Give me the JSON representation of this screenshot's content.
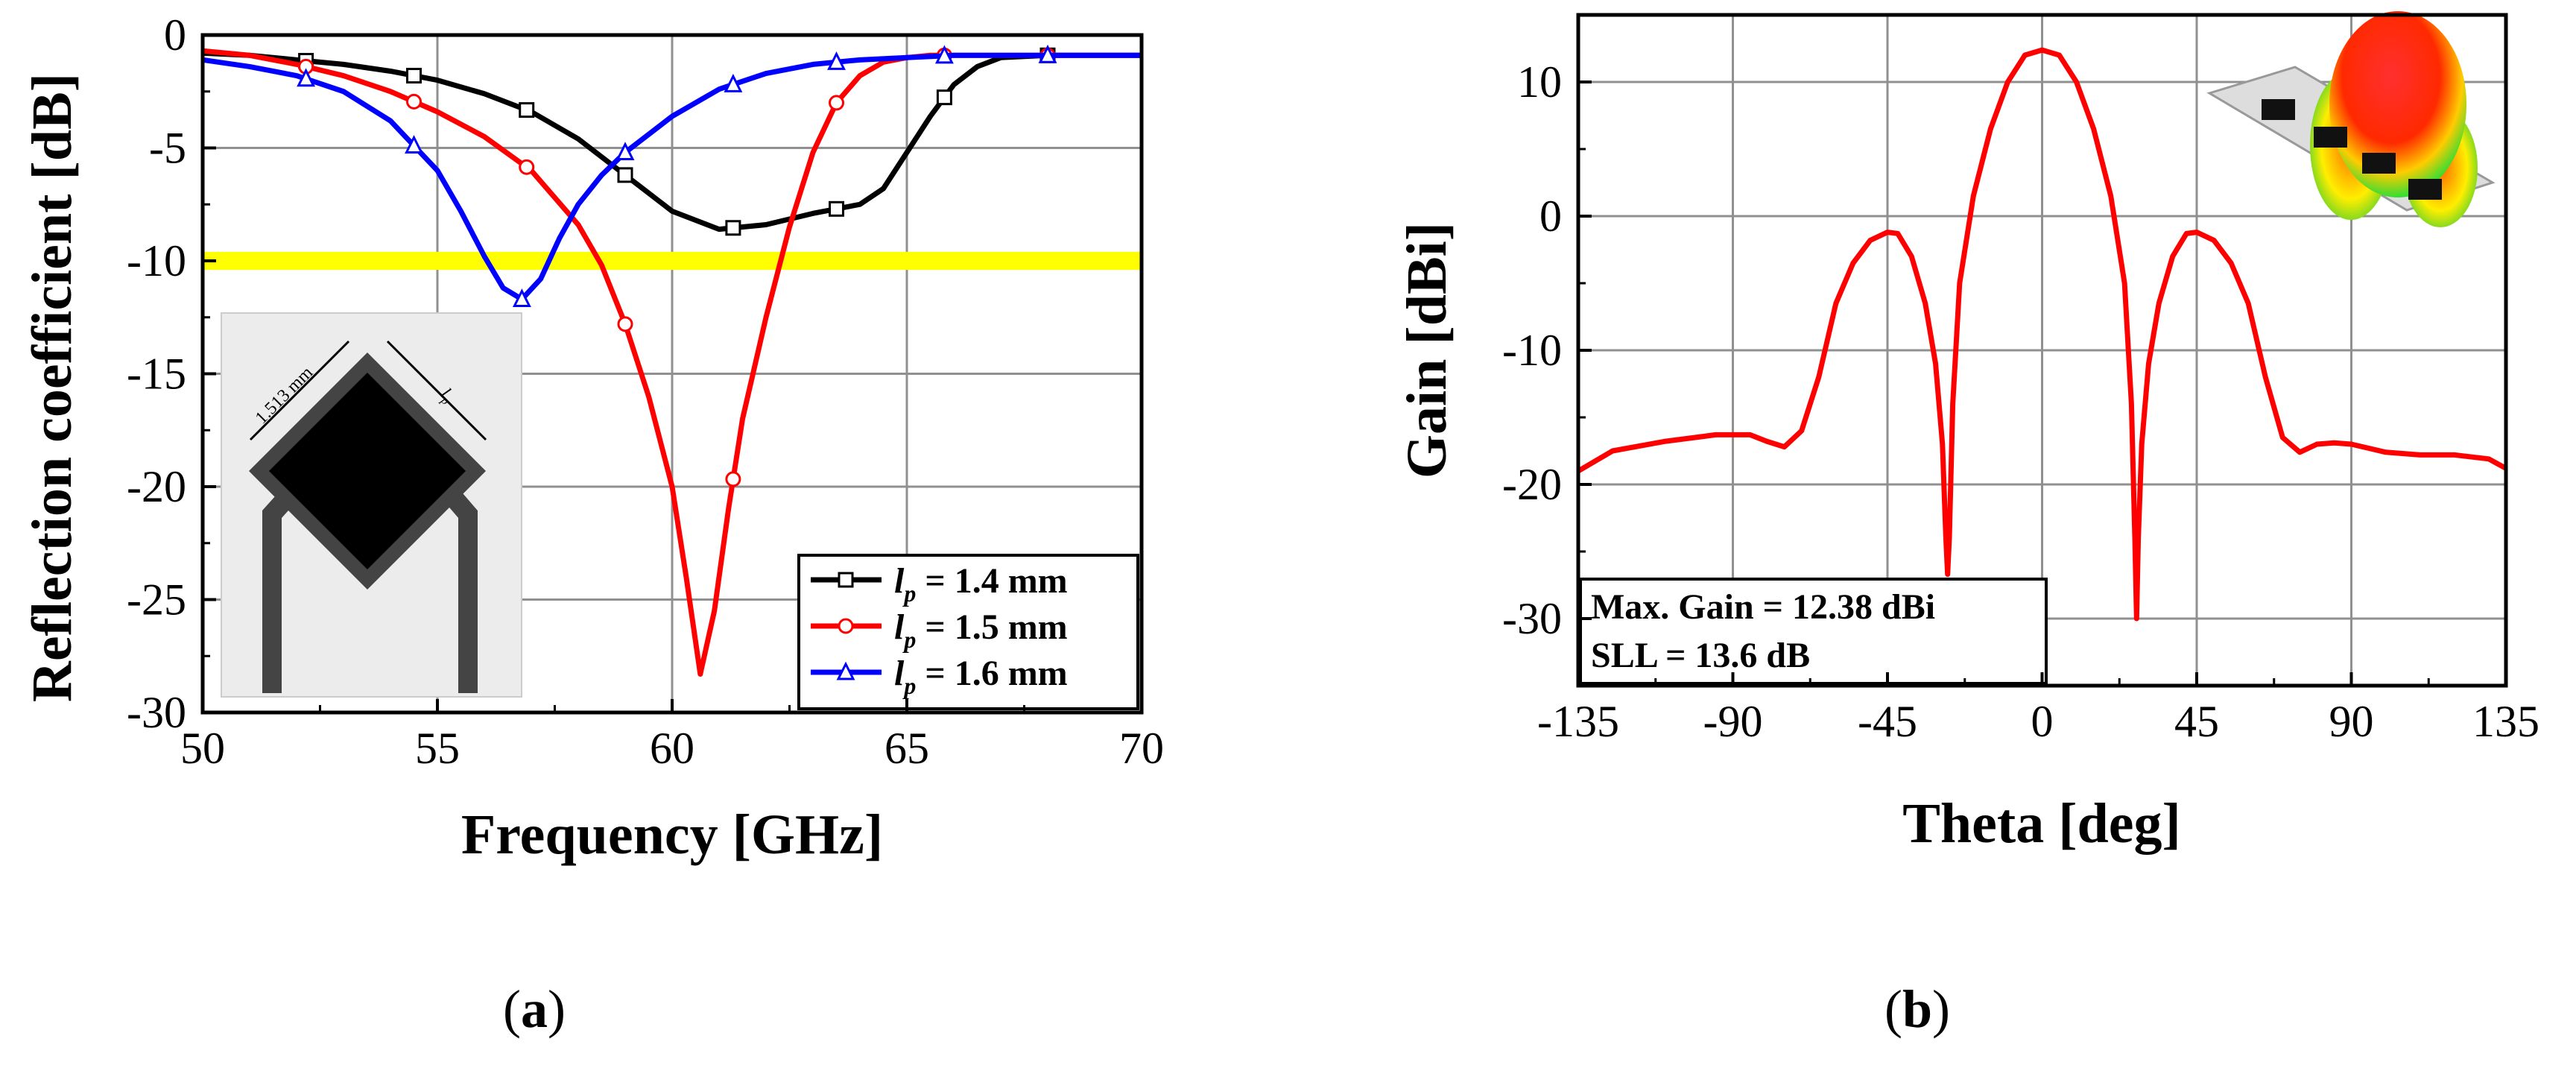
{
  "chart_data": [
    {
      "type": "line",
      "caption": "(a)",
      "xlabel": "Frequency [GHz]",
      "ylabel": "Reflection coefficient [dB]",
      "xlim": [
        50,
        70
      ],
      "ylim": [
        -30,
        0
      ],
      "xticks": [
        50,
        55,
        60,
        65,
        70
      ],
      "yticks": [
        0,
        -5,
        -10,
        -15,
        -20,
        -25,
        -30
      ],
      "grid": true,
      "threshold_band": [
        -10.4,
        -9.6
      ],
      "legend_position": "bottom-right",
      "series": [
        {
          "name_var": "l",
          "name_sub": "p",
          "name_rest": " = 1.4 mm",
          "color": "#000000",
          "marker": "square",
          "x": [
            50,
            51,
            52,
            53,
            54,
            55,
            56,
            57,
            58,
            59,
            60,
            61,
            62,
            63,
            63.5,
            64,
            64.5,
            65,
            65.5,
            66,
            66.5,
            67,
            68,
            69,
            70
          ],
          "y": [
            -0.8,
            -0.9,
            -1.1,
            -1.3,
            -1.6,
            -2.0,
            -2.6,
            -3.4,
            -4.6,
            -6.2,
            -7.8,
            -8.6,
            -8.4,
            -7.9,
            -7.7,
            -7.5,
            -6.8,
            -5.2,
            -3.6,
            -2.2,
            -1.4,
            -1.0,
            -0.9,
            -0.9,
            -0.9
          ],
          "marker_x": [
            52.2,
            54.5,
            56.9,
            59.0,
            61.3,
            63.5,
            65.8,
            68.0
          ]
        },
        {
          "name_var": "l",
          "name_sub": "p",
          "name_rest": " = 1.5 mm",
          "color": "#ff0000",
          "marker": "circle",
          "x": [
            50,
            51,
            52,
            53,
            54,
            55,
            56,
            57,
            58,
            58.5,
            59,
            59.5,
            60,
            60.3,
            60.6,
            60.9,
            61.2,
            61.5,
            62,
            62.5,
            63,
            63.5,
            64,
            64.5,
            65,
            65.5,
            66,
            67,
            68,
            69,
            70
          ],
          "y": [
            -0.7,
            -0.9,
            -1.3,
            -1.8,
            -2.5,
            -3.4,
            -4.5,
            -6.0,
            -8.4,
            -10.2,
            -12.8,
            -16.0,
            -20.0,
            -24.0,
            -28.3,
            -25.5,
            -21.0,
            -17.0,
            -12.5,
            -8.5,
            -5.2,
            -3.0,
            -1.8,
            -1.2,
            -1.0,
            -0.9,
            -0.9,
            -0.9,
            -0.9,
            -0.9,
            -0.9
          ],
          "marker_x": [
            52.2,
            54.5,
            56.9,
            59.0,
            61.3,
            63.5,
            65.8,
            68.0
          ]
        },
        {
          "name_var": "l",
          "name_sub": "p",
          "name_rest": " = 1.6 mm",
          "color": "#0000ff",
          "marker": "triangle",
          "x": [
            50,
            51,
            52,
            53,
            54,
            55,
            55.5,
            56,
            56.4,
            56.8,
            57.2,
            57.6,
            58,
            58.5,
            59,
            60,
            61,
            62,
            63,
            64,
            65,
            66,
            67,
            68,
            69,
            70
          ],
          "y": [
            -1.1,
            -1.4,
            -1.8,
            -2.5,
            -3.8,
            -6.0,
            -7.8,
            -9.8,
            -11.2,
            -11.7,
            -10.8,
            -9.0,
            -7.5,
            -6.2,
            -5.2,
            -3.6,
            -2.4,
            -1.7,
            -1.3,
            -1.1,
            -1.0,
            -0.9,
            -0.9,
            -0.9,
            -0.9,
            -0.9
          ],
          "marker_x": [
            52.2,
            54.5,
            56.8,
            59.0,
            61.3,
            63.5,
            65.8,
            68.0
          ]
        }
      ],
      "inset": {
        "dimension_label": "1.513 mm",
        "length_var": "l",
        "length_sub": "p"
      }
    },
    {
      "type": "line",
      "caption": "(b)",
      "xlabel": "Theta [deg]",
      "ylabel": "Gain [dBi]",
      "xlim": [
        -135,
        135
      ],
      "ylim": [
        -35,
        15
      ],
      "xticks": [
        -135,
        -90,
        -45,
        0,
        45,
        90,
        135
      ],
      "yticks": [
        10,
        0,
        -10,
        -20,
        -30
      ],
      "grid": true,
      "annotation_lines": [
        "Max. Gain = 12.38 dBi",
        "SLL = 13.6 dB"
      ],
      "series": [
        {
          "name": "Gain",
          "color": "#ff0000",
          "x": [
            -135,
            -125,
            -110,
            -95,
            -90,
            -85,
            -80,
            -75,
            -70,
            -65,
            -60,
            -55,
            -50,
            -45,
            -42,
            -38,
            -34,
            -31,
            -29,
            -28,
            -27.5,
            -27,
            -26,
            -24,
            -20,
            -15,
            -10,
            -5,
            0,
            5,
            10,
            15,
            20,
            24,
            26,
            27,
            27.5,
            28,
            29,
            31,
            34,
            38,
            42,
            45,
            50,
            55,
            60,
            65,
            70,
            75,
            80,
            85,
            90,
            95,
            100,
            110,
            120,
            130,
            135
          ],
          "y": [
            -19.0,
            -17.5,
            -16.8,
            -16.3,
            -16.3,
            -16.3,
            -16.8,
            -17.2,
            -16.0,
            -12.0,
            -6.5,
            -3.5,
            -1.8,
            -1.2,
            -1.3,
            -3.0,
            -6.5,
            -11.0,
            -17.0,
            -24.0,
            -26.7,
            -24.0,
            -14.0,
            -5.0,
            1.5,
            6.5,
            10.0,
            12.0,
            12.38,
            12.0,
            10.0,
            6.5,
            1.5,
            -5.0,
            -14.0,
            -24.0,
            -30.0,
            -24.0,
            -17.0,
            -11.0,
            -6.5,
            -3.0,
            -1.3,
            -1.2,
            -1.8,
            -3.5,
            -6.5,
            -12.0,
            -16.5,
            -17.6,
            -17.0,
            -16.9,
            -17.0,
            -17.3,
            -17.6,
            -17.8,
            -17.8,
            -18.1,
            -18.8
          ]
        }
      ]
    }
  ]
}
